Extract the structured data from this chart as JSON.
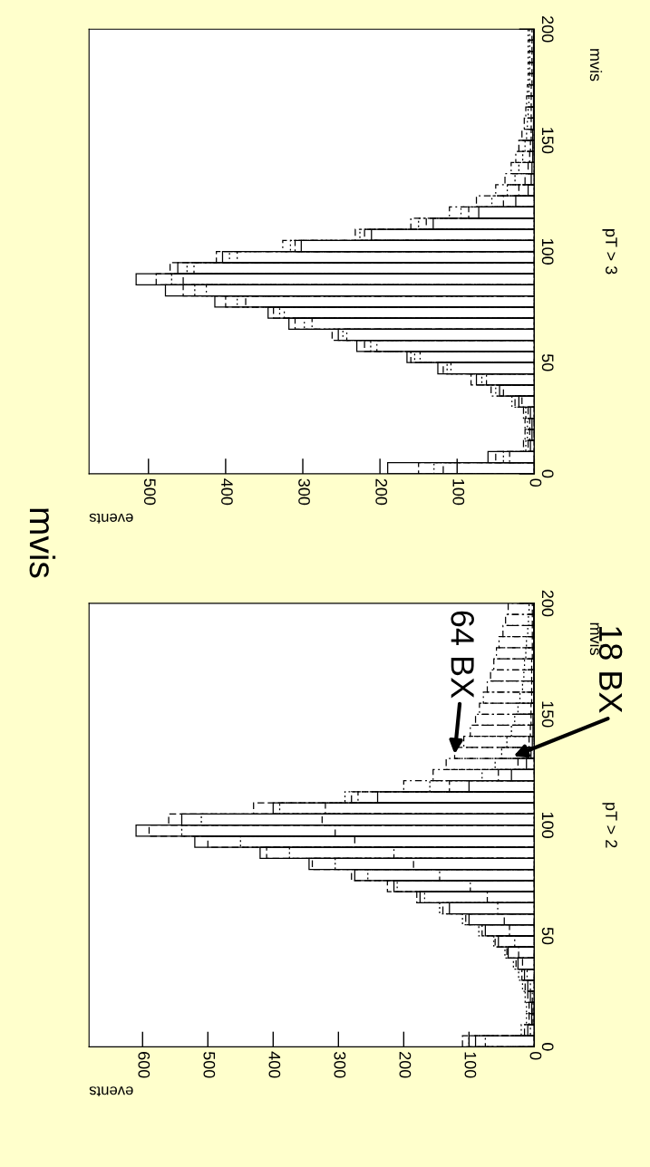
{
  "chart_data": [
    {
      "type": "histogram",
      "title": "mvis",
      "orientation": "horizontal",
      "xlabel": "events",
      "ylabel": "mvis",
      "xlim": [
        682,
        0
      ],
      "xticks": [
        0,
        100,
        200,
        300,
        400,
        500,
        600
      ],
      "ylim": [
        0,
        200
      ],
      "yticks": [
        0,
        50,
        100,
        150,
        200
      ],
      "bins": [
        0,
        5,
        10,
        15,
        20,
        25,
        30,
        35,
        40,
        45,
        50,
        55,
        60,
        65,
        70,
        75,
        80,
        85,
        90,
        95,
        100,
        105,
        110,
        115,
        120,
        125,
        130,
        135,
        140,
        145,
        150,
        155,
        160,
        165,
        170,
        175,
        180,
        185,
        190,
        195,
        200
      ],
      "annotations": [
        "pT > 2",
        {
          "text": "64 BX",
          "x": 122,
          "y": 132
        },
        {
          "text": "18 BX",
          "x": 32,
          "y": 131
        }
      ],
      "grid": false,
      "series": [
        {
          "color": "#000000",
          "line_style": "solid",
          "values": [
            90,
            10,
            4,
            4,
            6,
            10,
            15,
            25,
            40,
            55,
            75,
            100,
            130,
            175,
            215,
            275,
            345,
            420,
            520,
            610,
            540,
            400,
            240,
            100,
            35,
            12,
            5,
            3,
            2,
            2,
            1,
            1,
            1,
            1,
            1,
            1,
            1,
            1,
            1,
            1
          ]
        },
        {
          "color": "#000000",
          "line_style": "dashed",
          "values": [
            110,
            15,
            8,
            8,
            10,
            14,
            19,
            28,
            42,
            60,
            80,
            105,
            140,
            180,
            225,
            280,
            340,
            410,
            500,
            590,
            560,
            430,
            280,
            130,
            55,
            25,
            12,
            8,
            6,
            5,
            5,
            4,
            4,
            4,
            4,
            3,
            3,
            3,
            3,
            3
          ]
        },
        {
          "color": "#000000",
          "line_style": "dotted",
          "values": [
            100,
            20,
            12,
            12,
            14,
            18,
            24,
            32,
            45,
            62,
            85,
            110,
            145,
            168,
            210,
            255,
            305,
            375,
            450,
            540,
            510,
            390,
            290,
            160,
            80,
            60,
            50,
            42,
            35,
            30,
            25,
            22,
            18,
            16,
            15,
            13,
            12,
            10,
            9,
            8
          ]
        },
        {
          "color": "#000000",
          "line_style": "dashdot",
          "values": [
            75,
            6,
            2,
            2,
            3,
            6,
            11,
            18,
            24,
            30,
            38,
            46,
            56,
            72,
            98,
            145,
            185,
            215,
            275,
            305,
            325,
            320,
            270,
            200,
            155,
            135,
            122,
            108,
            98,
            90,
            84,
            78,
            72,
            67,
            62,
            58,
            54,
            48,
            44,
            40
          ]
        }
      ]
    },
    {
      "type": "histogram",
      "orientation": "horizontal",
      "xlabel": "events",
      "ylabel": "mvis",
      "xlim": [
        577,
        0
      ],
      "xticks": [
        0,
        100,
        200,
        300,
        400,
        500
      ],
      "ylim": [
        0,
        200
      ],
      "yticks": [
        0,
        50,
        100,
        150,
        200
      ],
      "bins": [
        0,
        5,
        10,
        15,
        20,
        25,
        30,
        35,
        40,
        45,
        50,
        55,
        60,
        65,
        70,
        75,
        80,
        85,
        90,
        95,
        100,
        105,
        110,
        115,
        120,
        125,
        130,
        135,
        140,
        145,
        150,
        155,
        160,
        165,
        170,
        175,
        180,
        185,
        190,
        195,
        200
      ],
      "annotations": [
        "pT > 3"
      ],
      "grid": false,
      "series": [
        {
          "color": "#000000",
          "line_style": "solid",
          "values": [
            190,
            60,
            5,
            3,
            3,
            5,
            20,
            45,
            75,
            125,
            165,
            230,
            254,
            318,
            345,
            414,
            478,
            516,
            462,
            404,
            302,
            211,
            131,
            72,
            24,
            8,
            4,
            3,
            2,
            2,
            2,
            1,
            1,
            1,
            1,
            1,
            1,
            1,
            1,
            1
          ]
        },
        {
          "color": "#000000",
          "line_style": "dashed",
          "values": [
            150,
            50,
            8,
            6,
            6,
            8,
            25,
            40,
            82,
            118,
            160,
            220,
            262,
            310,
            338,
            400,
            455,
            490,
            472,
            412,
            310,
            220,
            140,
            85,
            40,
            20,
            12,
            8,
            6,
            5,
            4,
            4,
            4,
            4,
            4,
            3,
            3,
            3,
            3,
            3
          ]
        },
        {
          "color": "#000000",
          "line_style": "dotted",
          "values": [
            130,
            40,
            11,
            9,
            9,
            11,
            29,
            50,
            68,
            113,
            155,
            212,
            248,
            298,
            330,
            385,
            440,
            470,
            450,
            395,
            316,
            226,
            150,
            95,
            55,
            35,
            25,
            20,
            15,
            12,
            10,
            9,
            8,
            7,
            7,
            6,
            6,
            6,
            6,
            6
          ]
        },
        {
          "color": "#000000",
          "line_style": "dashdot",
          "values": [
            118,
            32,
            14,
            12,
            12,
            14,
            16,
            56,
            62,
            108,
            148,
            204,
            243,
            288,
            324,
            374,
            425,
            455,
            441,
            385,
            326,
            232,
            160,
            110,
            75,
            50,
            38,
            30,
            24,
            20,
            16,
            13,
            11,
            10,
            9,
            8,
            8,
            8,
            8,
            8
          ]
        }
      ]
    }
  ]
}
